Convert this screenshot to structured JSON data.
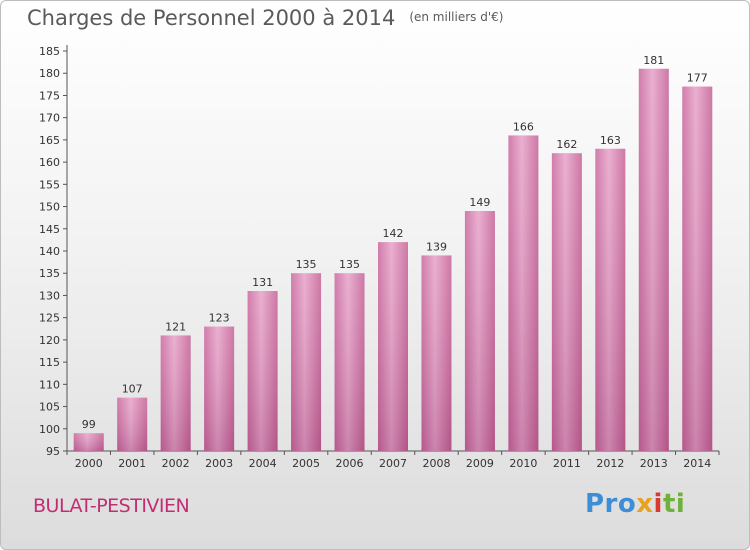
{
  "chart_data": {
    "type": "bar",
    "title": "Charges de Personnel 2000 à 2014",
    "subtitle": "(en milliers d'€)",
    "categories": [
      "2000",
      "2001",
      "2002",
      "2003",
      "2004",
      "2005",
      "2006",
      "2007",
      "2008",
      "2009",
      "2010",
      "2011",
      "2012",
      "2013",
      "2014"
    ],
    "values": [
      99,
      107,
      121,
      123,
      131,
      135,
      135,
      142,
      139,
      149,
      166,
      162,
      163,
      181,
      177
    ],
    "ylim": [
      95,
      185
    ],
    "yticks": [
      95,
      100,
      105,
      110,
      115,
      120,
      125,
      130,
      135,
      140,
      145,
      150,
      155,
      160,
      165,
      170,
      175,
      180,
      185
    ],
    "grid": false,
    "bar_color": "#d779ad"
  },
  "commune": "BULAT-PESTIVIEN",
  "logo": {
    "p1": "Pro",
    "p2": "x",
    "p3": "i",
    "p4": "ti"
  }
}
